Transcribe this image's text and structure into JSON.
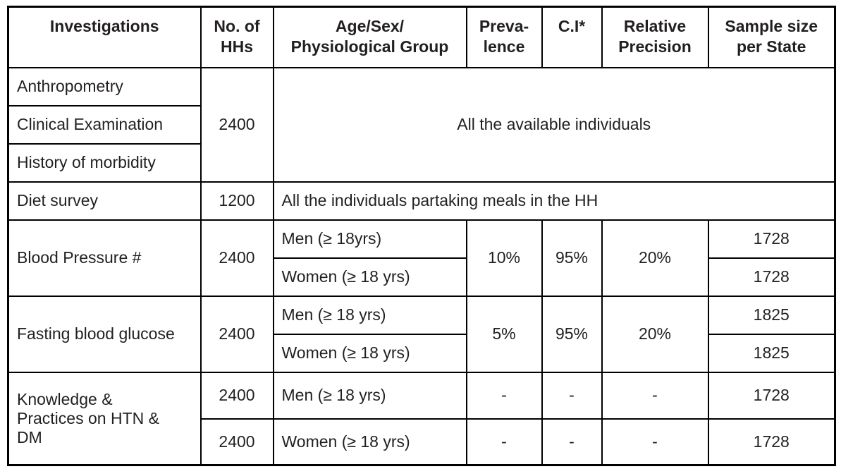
{
  "table": {
    "header": {
      "investigations": "Investigations",
      "no_of_hhs": "No. of\nHHs",
      "age_sex_group": "Age/Sex/\nPhysiological Group",
      "prevalence": "Preva-\nlence",
      "ci": "C.I*",
      "relative_precision": "Relative\nPrecision",
      "sample_size": "Sample size\nper State"
    },
    "anthropometry_group": {
      "rows": [
        "Anthropometry",
        "Clinical Examination",
        "History of morbidity"
      ],
      "hhs": "2400",
      "group": "All the available individuals"
    },
    "diet_survey": {
      "investigation": "Diet survey",
      "hhs": "1200",
      "group": "All the individuals partaking meals in the HH"
    },
    "blood_pressure": {
      "investigation": "Blood Pressure #",
      "hhs": "2400",
      "men": "Men (≥ 18yrs)",
      "women": "Women (≥ 18 yrs)",
      "prevalence": "10%",
      "ci": "95%",
      "relative_precision": "20%",
      "men_sample": "1728",
      "women_sample": "1728"
    },
    "fasting_blood_glucose": {
      "investigation": "Fasting blood glucose",
      "hhs": "2400",
      "men": "Men (≥ 18 yrs)",
      "women": "Women (≥ 18 yrs)",
      "prevalence": "5%",
      "ci": "95%",
      "relative_precision": "20%",
      "men_sample": "1825",
      "women_sample": "1825"
    },
    "knowledge_practices": {
      "investigation": "Knowledge &\nPractices on HTN &\nDM",
      "men_hhs": "2400",
      "women_hhs": "2400",
      "men": "Men (≥ 18 yrs)",
      "women": "Women (≥ 18 yrs)",
      "men_prevalence": "-",
      "men_ci": "-",
      "men_rp": "-",
      "men_sample": "1728",
      "women_prevalence": "-",
      "women_ci": "-",
      "women_rp": "-",
      "women_sample": "1728"
    }
  },
  "colors": {
    "text": "#231f20",
    "border": "#000000",
    "background": "#ffffff"
  }
}
